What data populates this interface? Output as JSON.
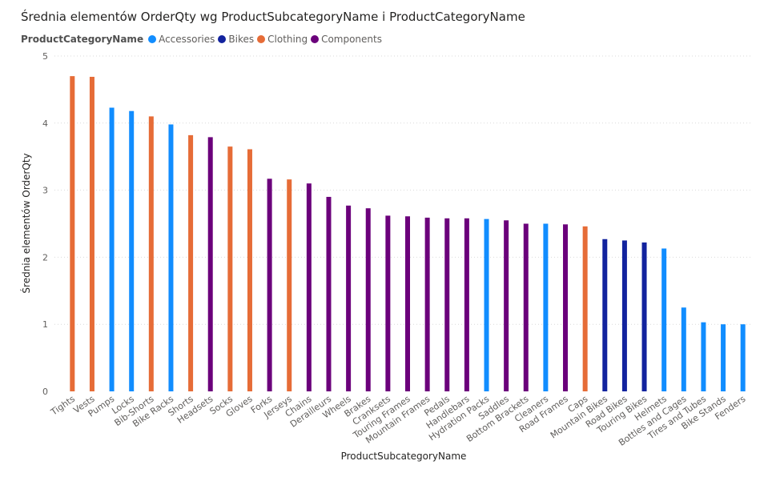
{
  "chart_data": {
    "type": "bar",
    "title": "Średnia elementów OrderQty wg ProductSubcategoryName i ProductCategoryName",
    "xlabel": "ProductSubcategoryName",
    "ylabel": "Średnia elementów OrderQty",
    "ylim": [
      0,
      5
    ],
    "yticks": [
      0,
      1,
      2,
      3,
      4,
      5
    ],
    "grid": true,
    "legend": {
      "title": "ProductCategoryName",
      "placement": "top-left",
      "entries": [
        {
          "name": "Accessories",
          "color": "#118DFF"
        },
        {
          "name": "Bikes",
          "color": "#12239E"
        },
        {
          "name": "Clothing",
          "color": "#E66C37"
        },
        {
          "name": "Components",
          "color": "#6B007B"
        }
      ]
    },
    "categories": [
      "Tights",
      "Vests",
      "Pumps",
      "Locks",
      "Bib-Shorts",
      "Bike Racks",
      "Shorts",
      "Headsets",
      "Socks",
      "Gloves",
      "Forks",
      "Jerseys",
      "Chains",
      "Derailleurs",
      "Wheels",
      "Brakes",
      "Cranksets",
      "Touring Frames",
      "Mountain Frames",
      "Pedals",
      "Handlebars",
      "Hydration Packs",
      "Saddles",
      "Bottom Brackets",
      "Cleaners",
      "Road Frames",
      "Caps",
      "Mountain Bikes",
      "Road Bikes",
      "Touring Bikes",
      "Helmets",
      "Bottles and Cages",
      "Tires and Tubes",
      "Bike Stands",
      "Fenders"
    ],
    "series": [
      {
        "name": "Accessories",
        "color": "#118DFF",
        "values": [
          null,
          null,
          4.23,
          4.18,
          null,
          3.98,
          null,
          null,
          null,
          null,
          null,
          null,
          null,
          null,
          null,
          null,
          null,
          null,
          null,
          null,
          null,
          2.57,
          null,
          null,
          2.5,
          null,
          null,
          null,
          null,
          null,
          2.13,
          1.25,
          1.03,
          1.0,
          1.0
        ]
      },
      {
        "name": "Bikes",
        "color": "#12239E",
        "values": [
          null,
          null,
          null,
          null,
          null,
          null,
          null,
          null,
          null,
          null,
          null,
          null,
          null,
          null,
          null,
          null,
          null,
          null,
          null,
          null,
          null,
          null,
          null,
          null,
          null,
          null,
          null,
          2.27,
          2.25,
          2.22,
          null,
          null,
          null,
          null,
          null
        ]
      },
      {
        "name": "Clothing",
        "color": "#E66C37",
        "values": [
          4.7,
          4.69,
          null,
          null,
          4.1,
          null,
          3.82,
          null,
          3.65,
          3.61,
          null,
          3.16,
          null,
          null,
          null,
          null,
          null,
          null,
          null,
          null,
          null,
          null,
          null,
          null,
          null,
          null,
          2.46,
          null,
          null,
          null,
          null,
          null,
          null,
          null,
          null
        ]
      },
      {
        "name": "Components",
        "color": "#6B007B",
        "values": [
          null,
          null,
          null,
          null,
          null,
          null,
          null,
          3.79,
          null,
          null,
          3.17,
          null,
          3.1,
          2.9,
          2.77,
          2.73,
          2.62,
          2.61,
          2.59,
          2.58,
          2.58,
          null,
          2.55,
          2.5,
          null,
          2.49,
          null,
          null,
          null,
          null,
          null,
          null,
          null,
          null,
          null
        ]
      }
    ]
  }
}
